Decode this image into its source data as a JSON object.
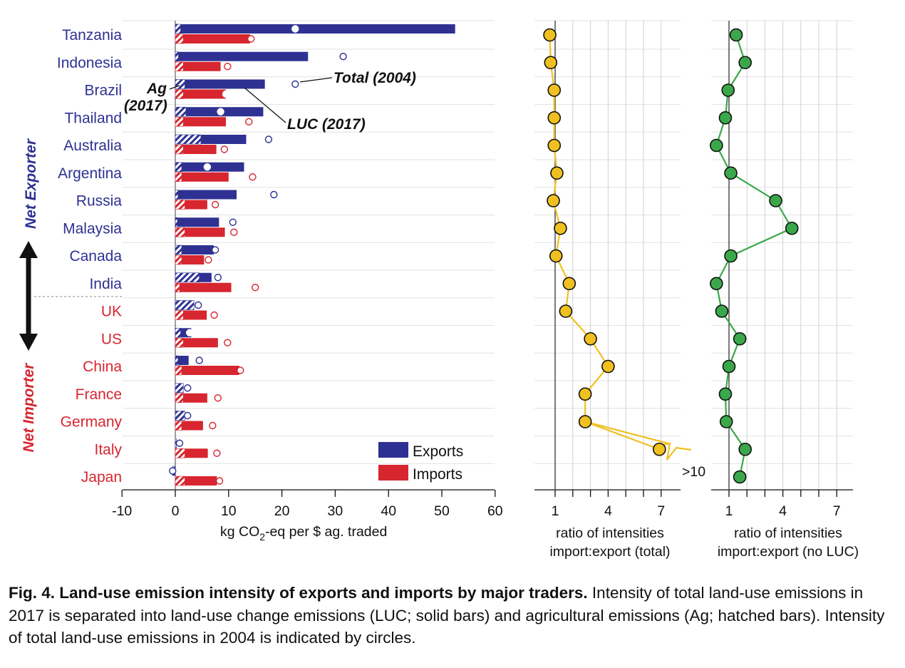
{
  "chart_data": [
    {
      "type": "bar",
      "orientation": "horizontal",
      "categories": [
        "Tanzania",
        "Indonesia",
        "Brazil",
        "Thailand",
        "Australia",
        "Argentina",
        "Russia",
        "Malaysia",
        "Canada",
        "India",
        "UK",
        "US",
        "China",
        "France",
        "Germany",
        "Italy",
        "Japan"
      ],
      "groups": [
        {
          "label": "Net Exporter",
          "categories": [
            "Tanzania",
            "Indonesia",
            "Brazil",
            "Thailand",
            "Australia",
            "Argentina",
            "Russia",
            "Malaysia",
            "Canada",
            "India"
          ],
          "color": "#2e3192"
        },
        {
          "label": "Net Importer",
          "categories": [
            "UK",
            "US",
            "China",
            "France",
            "Germany",
            "Italy",
            "Japan"
          ],
          "color": "#d7262f"
        }
      ],
      "series": [
        {
          "name": "Exports",
          "color": "#2e3192",
          "ag_2017": [
            1.0,
            0.6,
            1.8,
            2.0,
            4.8,
            1.2,
            0.5,
            0.4,
            1.2,
            4.5,
            3.5,
            1.0,
            0.5,
            1.5,
            1.8,
            0.2,
            -0.5
          ],
          "luc_2017": [
            51.5,
            24.3,
            15.0,
            14.5,
            8.5,
            11.7,
            11.0,
            7.8,
            6.0,
            2.3,
            0.0,
            2.0,
            2.0,
            0.0,
            0.0,
            0.0,
            0.0
          ],
          "total_2004": [
            22.5,
            31.5,
            22.5,
            8.5,
            17.5,
            6.0,
            18.5,
            10.8,
            7.5,
            8.0,
            4.3,
            2.7,
            4.5,
            2.3,
            2.3,
            0.8,
            -0.5
          ]
        },
        {
          "name": "Imports",
          "color": "#d7262f",
          "ag_2017": [
            1.5,
            1.5,
            1.5,
            1.5,
            1.5,
            1.2,
            1.8,
            1.8,
            1.2,
            0.8,
            1.5,
            1.5,
            1.2,
            1.5,
            1.2,
            1.8,
            1.8
          ],
          "luc_2017": [
            12.5,
            7.0,
            8.0,
            8.0,
            6.2,
            8.8,
            4.2,
            7.5,
            4.2,
            9.7,
            4.4,
            6.5,
            10.8,
            4.5,
            4.0,
            4.3,
            6.0
          ],
          "total_2004": [
            14.2,
            9.8,
            9.5,
            13.8,
            9.2,
            14.5,
            7.5,
            11.0,
            6.2,
            15.0,
            7.3,
            9.8,
            12.2,
            8.0,
            7.0,
            7.8,
            8.3
          ]
        }
      ],
      "xlabel": "kg CO",
      "xlabel_sub": "2",
      "xlabel_rest": "-eq per $ ag. traded",
      "xlim": [
        -10,
        60
      ],
      "xticks": [
        "-10",
        "0",
        "10",
        "20",
        "30",
        "40",
        "50",
        "60"
      ],
      "annotations": {
        "ag": "Ag",
        "ag_year": "(2017)",
        "luc": "LUC (2017)",
        "total": "Total (2004)"
      },
      "legend": {
        "placement": "bottom-right",
        "exports": "Exports",
        "imports": "Imports"
      }
    },
    {
      "type": "line",
      "categories": [
        "Tanzania",
        "Indonesia",
        "Brazil",
        "Thailand",
        "Australia",
        "Argentina",
        "Russia",
        "Malaysia",
        "Canada",
        "India",
        "UK",
        "US",
        "China",
        "France",
        "Germany",
        "Italy",
        "Japan"
      ],
      "series": [
        {
          "name": "total",
          "color": "#f0c020",
          "values": [
            0.7,
            0.75,
            0.95,
            0.95,
            0.95,
            1.1,
            0.9,
            1.3,
            1.05,
            1.8,
            1.6,
            3.0,
            4.0,
            2.7,
            2.7,
            6.9,
            null
          ]
        }
      ],
      "off_scale_label": ">10",
      "xticks": [
        "1",
        "4",
        "7"
      ],
      "xlim": [
        0,
        8
      ],
      "xlabel_line1": "ratio of intensities",
      "xlabel_line2": "import:export (total)"
    },
    {
      "type": "line",
      "categories": [
        "Tanzania",
        "Indonesia",
        "Brazil",
        "Thailand",
        "Australia",
        "Argentina",
        "Russia",
        "Malaysia",
        "Canada",
        "India",
        "UK",
        "US",
        "China",
        "France",
        "Germany",
        "Italy",
        "Japan"
      ],
      "series": [
        {
          "name": "no LUC",
          "color": "#3aa84a",
          "values": [
            1.4,
            1.9,
            0.95,
            0.8,
            0.3,
            1.1,
            3.6,
            4.5,
            1.1,
            0.3,
            0.6,
            1.6,
            1.0,
            0.8,
            0.85,
            1.9,
            1.6
          ]
        }
      ],
      "xticks": [
        "1",
        "4",
        "7"
      ],
      "xlim": [
        0,
        8
      ],
      "xlabel_line1": "ratio of intensities",
      "xlabel_line2": "import:export (no LUC)"
    }
  ],
  "caption": {
    "bold": "Fig. 4. Land-use emission intensity of exports and imports by major traders.",
    "text": " Intensity of total land-use emissions in 2017 is separated into land-use change emissions (LUC; solid bars) and agricultural emissions (Ag; hatched bars). Intensity of total land-use emissions in 2004 is indicated by circles."
  }
}
